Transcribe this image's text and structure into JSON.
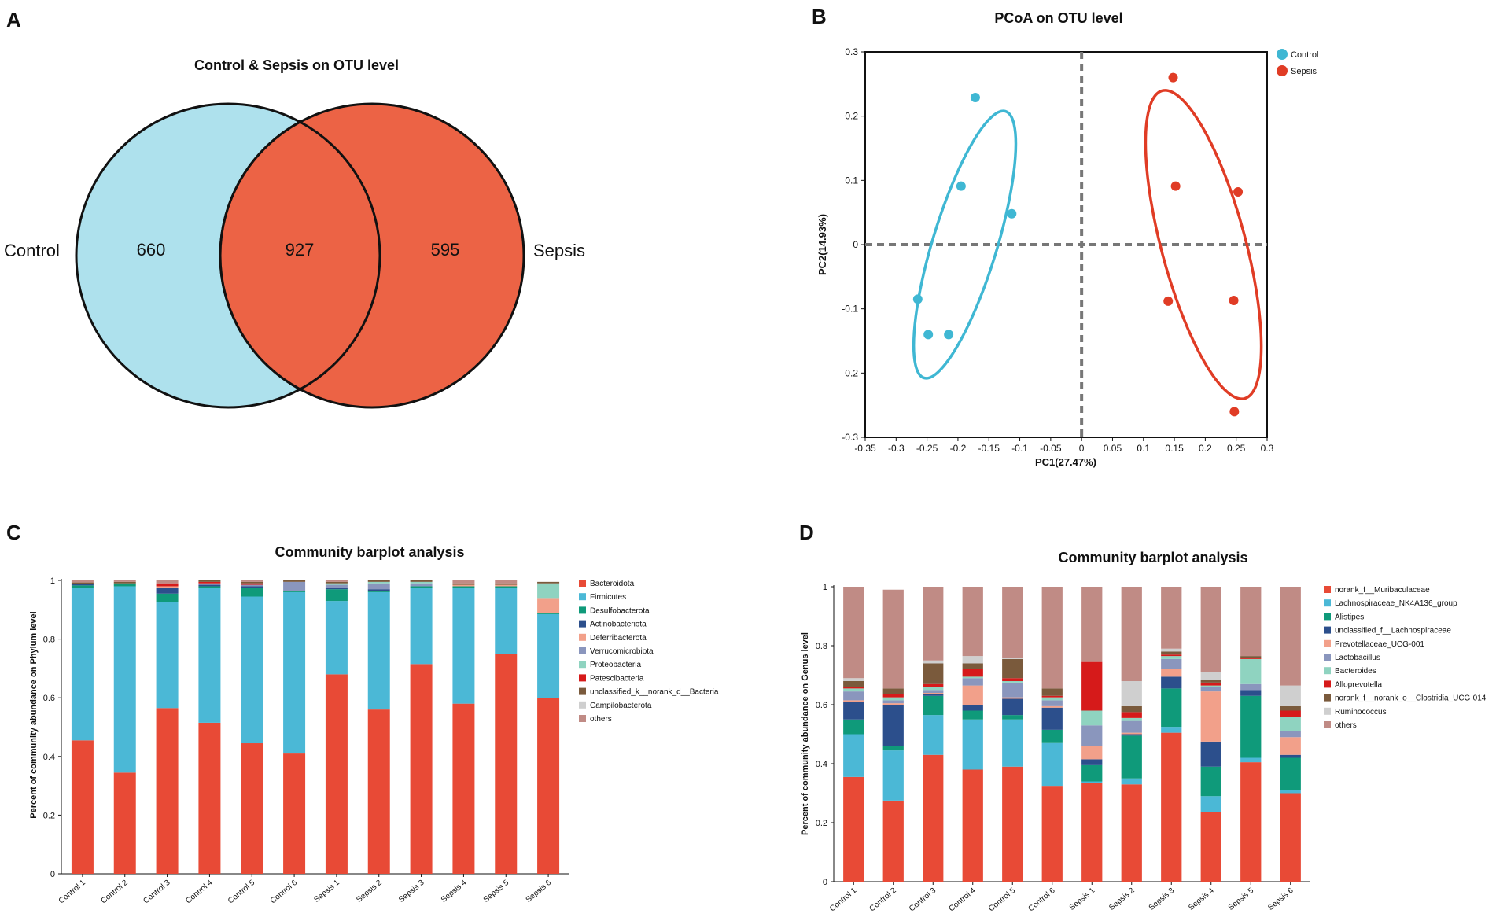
{
  "colors": {
    "control": "#4bb8d6",
    "sepsis": "#e8472f",
    "venn_control": "#aee1ed",
    "venn_sepsis": "#ec6345"
  },
  "panel_labels": [
    "A",
    "B",
    "C",
    "D"
  ],
  "chart_data": [
    {
      "type": "venn",
      "title": "Control & Sepsis on OTU level",
      "sets": [
        {
          "name": "Control",
          "only": "660"
        },
        {
          "name": "Sepsis",
          "only": "595"
        }
      ],
      "intersection": "927"
    },
    {
      "type": "scatter",
      "title": "PCoA on OTU level",
      "xlabel": "PC1(27.47%)",
      "ylabel": "PC2(14.93%)",
      "xlim": [
        -0.35,
        0.3
      ],
      "ylim": [
        -0.3,
        0.3
      ],
      "xticks": [
        "-0.35",
        "-0.3",
        "-0.25",
        "-0.2",
        "-0.15",
        "-0.1",
        "-0.05",
        "0",
        "0.05",
        "0.1",
        "0.15",
        "0.2",
        "0.25",
        "0.3"
      ],
      "yticks": [
        "0.3",
        "0.2",
        "0.1",
        "0",
        "-0.1",
        "-0.2",
        "-0.3"
      ],
      "series": [
        {
          "name": "Control",
          "color": "#3fb7d3",
          "points": [
            [
              -0.172,
              0.229
            ],
            [
              -0.195,
              0.091
            ],
            [
              -0.113,
              0.048
            ],
            [
              -0.265,
              -0.085
            ],
            [
              -0.248,
              -0.14
            ],
            [
              -0.215,
              -0.14
            ]
          ],
          "ellipse": {
            "cx": -0.189,
            "cy": 0.0,
            "rx": 0.052,
            "ry": 0.217,
            "angle": 17
          }
        },
        {
          "name": "Sepsis",
          "color": "#e03c25",
          "points": [
            [
              0.148,
              0.26
            ],
            [
              0.152,
              0.091
            ],
            [
              0.253,
              0.082
            ],
            [
              0.14,
              -0.088
            ],
            [
              0.246,
              -0.087
            ],
            [
              0.247,
              -0.26
            ]
          ],
          "ellipse": {
            "cx": 0.197,
            "cy": 0.0,
            "rx": 0.068,
            "ry": 0.248,
            "angle": -15
          }
        }
      ]
    },
    {
      "type": "bar",
      "stacked": true,
      "title": "Community barplot analysis",
      "ylabel": "Percent of community abundance on Phylum level",
      "ylim": [
        0,
        1
      ],
      "yticks": [
        "0",
        "0.2",
        "0.4",
        "0.6",
        "0.8",
        "1"
      ],
      "categories": [
        "Control 1",
        "Control 2",
        "Control 3",
        "Control 4",
        "Control 5",
        "Control 6",
        "Sepsis 1",
        "Sepsis 2",
        "Sepsis 3",
        "Sepsis 4",
        "Sepsis 5",
        "Sepsis 6"
      ],
      "series": [
        {
          "name": "Bacteroidota",
          "color": "#e84a36",
          "values": [
            0.455,
            0.345,
            0.565,
            0.515,
            0.445,
            0.41,
            0.68,
            0.56,
            0.715,
            0.58,
            0.75,
            0.6
          ]
        },
        {
          "name": "Firmicutes",
          "color": "#4bb8d6",
          "values": [
            0.52,
            0.635,
            0.36,
            0.46,
            0.5,
            0.55,
            0.25,
            0.4,
            0.26,
            0.395,
            0.225,
            0.285
          ]
        },
        {
          "name": "Desulfobacterota",
          "color": "#0f9a7a",
          "values": [
            0.008,
            0.01,
            0.03,
            0.005,
            0.03,
            0.005,
            0.04,
            0.005,
            0.005,
            0.005,
            0.005,
            0.005
          ]
        },
        {
          "name": "Actinobacteriota",
          "color": "#2c4f8c",
          "values": [
            0.005,
            0.0,
            0.02,
            0.005,
            0.005,
            0.0,
            0.005,
            0.005,
            0.0,
            0.0,
            0.0,
            0.0
          ]
        },
        {
          "name": "Deferribacterota",
          "color": "#f2a08a",
          "values": [
            0.0,
            0.0,
            0.005,
            0.0,
            0.0,
            0.0,
            0.0,
            0.0,
            0.0,
            0.005,
            0.005,
            0.05
          ]
        },
        {
          "name": "Verrucomicrobiota",
          "color": "#8a96bd",
          "values": [
            0.0,
            0.0,
            0.0,
            0.005,
            0.005,
            0.03,
            0.01,
            0.02,
            0.01,
            0.0,
            0.0,
            0.0
          ]
        },
        {
          "name": "Proteobacteria",
          "color": "#8fd3c0",
          "values": [
            0.0,
            0.0,
            0.0,
            0.0,
            0.0,
            0.0,
            0.005,
            0.005,
            0.005,
            0.0,
            0.0,
            0.05
          ]
        },
        {
          "name": "Patescibacteria",
          "color": "#d61a1a",
          "values": [
            0.0,
            0.0,
            0.01,
            0.005,
            0.005,
            0.0,
            0.0,
            0.0,
            0.0,
            0.0,
            0.0,
            0.0
          ]
        },
        {
          "name": "unclassified_k__norank_d__Bacteria",
          "color": "#7a5a3c",
          "values": [
            0.005,
            0.005,
            0.0,
            0.005,
            0.005,
            0.005,
            0.005,
            0.005,
            0.005,
            0.005,
            0.005,
            0.005
          ]
        },
        {
          "name": "Campilobacterota",
          "color": "#cfcfcf",
          "values": [
            0.0,
            0.0,
            0.0,
            0.0,
            0.0,
            0.0,
            0.0,
            0.0,
            0.0,
            0.0,
            0.0,
            0.0
          ]
        },
        {
          "name": "others",
          "color": "#c08b85",
          "values": [
            0.007,
            0.005,
            0.01,
            0.0,
            0.005,
            0.0,
            0.005,
            0.0,
            0.0,
            0.01,
            0.01,
            0.0
          ]
        }
      ]
    },
    {
      "type": "bar",
      "stacked": true,
      "title": "Community barplot analysis",
      "ylabel": "Percent of community abundance on Genus level",
      "ylim": [
        0,
        1
      ],
      "yticks": [
        "0",
        "0.2",
        "0.4",
        "0.6",
        "0.8",
        "1"
      ],
      "categories": [
        "Control 1",
        "Control 2",
        "Control 3",
        "Control 4",
        "Control 5",
        "Control 6",
        "Sepsis 1",
        "Sepsis 2",
        "Sepsis 3",
        "Sepsis 4",
        "Sepsis 5",
        "Sepsis 6"
      ],
      "series": [
        {
          "name": "norank_f__Muribaculaceae",
          "color": "#e84a36",
          "values": [
            0.355,
            0.275,
            0.43,
            0.38,
            0.39,
            0.325,
            0.335,
            0.33,
            0.505,
            0.235,
            0.405,
            0.3
          ]
        },
        {
          "name": "Lachnospiraceae_NK4A136_group",
          "color": "#4bb8d6",
          "values": [
            0.145,
            0.17,
            0.135,
            0.17,
            0.16,
            0.145,
            0.005,
            0.02,
            0.02,
            0.055,
            0.015,
            0.01
          ]
        },
        {
          "name": "Alistipes",
          "color": "#0f9a7a",
          "values": [
            0.05,
            0.015,
            0.065,
            0.03,
            0.015,
            0.045,
            0.055,
            0.145,
            0.13,
            0.1,
            0.21,
            0.11
          ]
        },
        {
          "name": "unclassified_f__Lachnospiraceae",
          "color": "#2c4f8c",
          "values": [
            0.06,
            0.14,
            0.005,
            0.02,
            0.055,
            0.075,
            0.02,
            0.005,
            0.04,
            0.085,
            0.02,
            0.01
          ]
        },
        {
          "name": "Prevotellaceae_UCG-001",
          "color": "#f2a08a",
          "values": [
            0.005,
            0.005,
            0.005,
            0.065,
            0.005,
            0.005,
            0.045,
            0.005,
            0.025,
            0.17,
            0.0,
            0.06
          ]
        },
        {
          "name": "Lactobacillus",
          "color": "#8a96bd",
          "values": [
            0.03,
            0.01,
            0.01,
            0.025,
            0.05,
            0.02,
            0.07,
            0.04,
            0.035,
            0.015,
            0.02,
            0.02
          ]
        },
        {
          "name": "Bacteroides",
          "color": "#8fd3c0",
          "values": [
            0.01,
            0.01,
            0.01,
            0.005,
            0.005,
            0.01,
            0.05,
            0.01,
            0.01,
            0.005,
            0.085,
            0.05
          ]
        },
        {
          "name": "Alloprevotella",
          "color": "#d61a1a",
          "values": [
            0.005,
            0.01,
            0.01,
            0.025,
            0.01,
            0.005,
            0.165,
            0.02,
            0.005,
            0.01,
            0.005,
            0.02
          ]
        },
        {
          "name": "norank_f__norank_o__Clostridia_UCG-014",
          "color": "#7a5a3c",
          "values": [
            0.02,
            0.02,
            0.07,
            0.02,
            0.065,
            0.025,
            0.0,
            0.02,
            0.01,
            0.01,
            0.005,
            0.015
          ]
        },
        {
          "name": "Ruminococcus",
          "color": "#cfcfcf",
          "values": [
            0.01,
            0.0,
            0.01,
            0.025,
            0.005,
            0.0,
            0.0,
            0.085,
            0.01,
            0.025,
            0.0,
            0.07
          ]
        },
        {
          "name": "others",
          "color": "#c08b85",
          "values": [
            0.31,
            0.335,
            0.25,
            0.235,
            0.24,
            0.345,
            0.255,
            0.32,
            0.21,
            0.29,
            0.235,
            0.335
          ]
        }
      ]
    }
  ]
}
